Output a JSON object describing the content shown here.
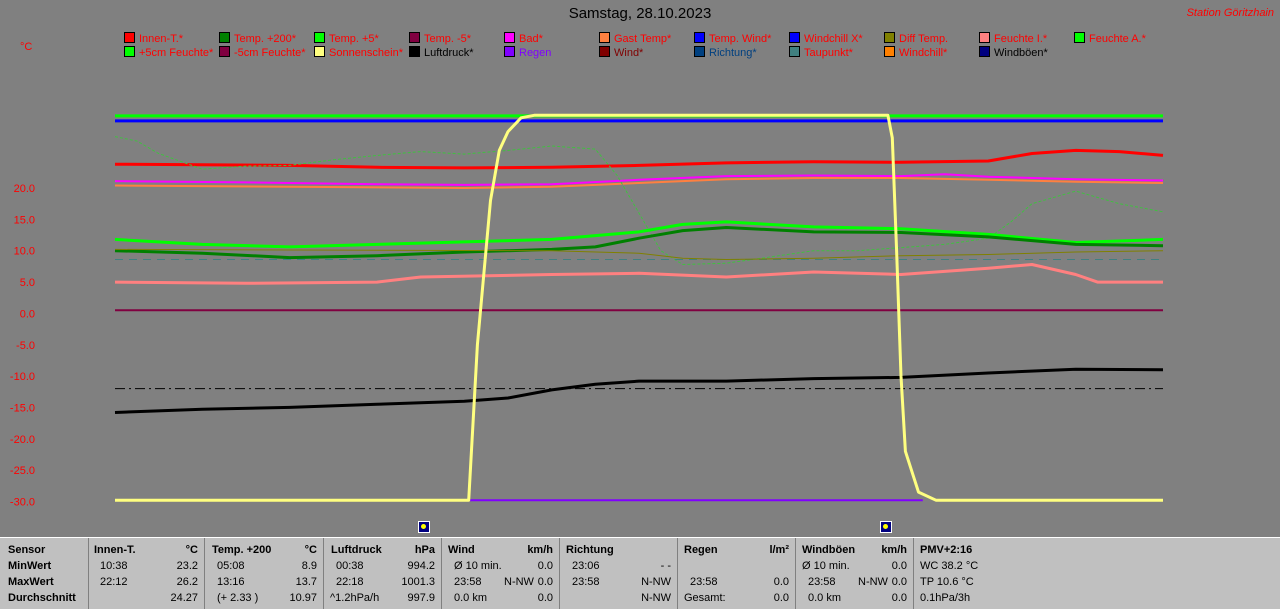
{
  "title": "Samstag, 28.10.2023",
  "station": "Station Göritzhain",
  "unit": "°C",
  "legend": [
    {
      "label": "Innen-T.*",
      "color": "#ff0000"
    },
    {
      "label": "Temp. +200*",
      "color": "#008000"
    },
    {
      "label": "Temp. +5*",
      "color": "#00ff00"
    },
    {
      "label": "Temp. -5*",
      "color": "#800040"
    },
    {
      "label": "Bad*",
      "color": "#ff00ff"
    },
    {
      "label": "Gast Temp*",
      "color": "#ff8040"
    },
    {
      "label": "Temp. Wind*",
      "color": "#0000ff"
    },
    {
      "label": "Windchill X*",
      "color": "#0000ff"
    },
    {
      "label": "Diff Temp.",
      "color": "#808000"
    },
    {
      "label": "Feuchte I.*",
      "color": "#ff8080"
    },
    {
      "label": "Feuchte A.*",
      "color": "#00ff00"
    },
    {
      "label": "+5cm Feuchte*",
      "color": "#00ff00"
    },
    {
      "label": "-5cm Feuchte*",
      "color": "#800040"
    },
    {
      "label": "Sonnenschein*",
      "color": "#ffff80"
    },
    {
      "label": "Luftdruck*",
      "color": "#000000"
    },
    {
      "label": "Regen",
      "color": "#8000ff"
    },
    {
      "label": "Wind*",
      "color": "#800000"
    },
    {
      "label": "Richtung*",
      "color": "#004080"
    },
    {
      "label": "Taupunkt*",
      "color": "#408080"
    },
    {
      "label": "Windchill*",
      "color": "#ff8000"
    },
    {
      "label": "Windböen*",
      "color": "#000080"
    }
  ],
  "legend_text_colors": [
    "#ff0000",
    "#ff0000",
    "#ff0000",
    "#ff0000",
    "#ff0000",
    "#ff0000",
    "#ff0000",
    "#ff0000",
    "#ff0000",
    "#ff0000",
    "#ff0000",
    "#ff0000",
    "#ff0000",
    "#ff0000",
    "#000000",
    "#8000ff",
    "#800000",
    "#004080",
    "#ff0000",
    "#ff0000",
    "#000000"
  ],
  "chart_data": {
    "type": "line",
    "ylim": [
      -30,
      32
    ],
    "yticks": [
      "20.0",
      "15.0",
      "10.0",
      "5.0",
      "0.0",
      "-5.0",
      "-10.0",
      "-15.0",
      "-20.0",
      "-25.0",
      "-30.0"
    ],
    "ytick_values": [
      20,
      15,
      10,
      5,
      0,
      -5,
      -10,
      -15,
      -20,
      -25,
      -30
    ],
    "x_range_hours": [
      0,
      24
    ],
    "series": [
      {
        "key": "innen",
        "color": "#ff0000",
        "width": 3,
        "points": [
          [
            0,
            23.8
          ],
          [
            2,
            23.7
          ],
          [
            4,
            23.6
          ],
          [
            6,
            23.3
          ],
          [
            8,
            23.2
          ],
          [
            10,
            23.3
          ],
          [
            12,
            23.6
          ],
          [
            14,
            24.0
          ],
          [
            16,
            24.2
          ],
          [
            18,
            24.1
          ],
          [
            20,
            24.3
          ],
          [
            21,
            25.5
          ],
          [
            22,
            26.0
          ],
          [
            23,
            25.8
          ],
          [
            24,
            25.2
          ]
        ]
      },
      {
        "key": "bad",
        "color": "#ff00ff",
        "width": 2,
        "points": [
          [
            0,
            21.1
          ],
          [
            3,
            20.9
          ],
          [
            6,
            20.6
          ],
          [
            8,
            20.5
          ],
          [
            10,
            20.6
          ],
          [
            12,
            21.3
          ],
          [
            14,
            21.9
          ],
          [
            16,
            22.0
          ],
          [
            18,
            21.9
          ],
          [
            19,
            22.2
          ],
          [
            20,
            21.8
          ],
          [
            22,
            21.4
          ],
          [
            24,
            21.2
          ]
        ]
      },
      {
        "key": "gast",
        "color": "#ff8040",
        "width": 2,
        "points": [
          [
            0,
            20.4
          ],
          [
            4,
            20.2
          ],
          [
            8,
            20.0
          ],
          [
            10,
            20.2
          ],
          [
            12,
            20.8
          ],
          [
            14,
            21.4
          ],
          [
            16,
            21.6
          ],
          [
            18,
            21.6
          ],
          [
            20,
            21.3
          ],
          [
            22,
            21.0
          ],
          [
            24,
            20.8
          ]
        ]
      },
      {
        "key": "feuchte_a",
        "color": "#40c040",
        "width": 1,
        "dash": "3,2",
        "points": [
          [
            0,
            28.2
          ],
          [
            0.5,
            27.5
          ],
          [
            1,
            25.5
          ],
          [
            2,
            23.0
          ],
          [
            3,
            23.5
          ],
          [
            4,
            23.6
          ],
          [
            5,
            24.5
          ],
          [
            6,
            25.2
          ],
          [
            7,
            25.8
          ],
          [
            8,
            25.4
          ],
          [
            9,
            26.0
          ],
          [
            10,
            26.7
          ],
          [
            11,
            26.2
          ],
          [
            11.5,
            22.0
          ],
          [
            12,
            16.0
          ],
          [
            12.5,
            10.0
          ],
          [
            13,
            7.8
          ],
          [
            14,
            8.0
          ],
          [
            15,
            9.0
          ],
          [
            16,
            10.0
          ],
          [
            17,
            10.0
          ],
          [
            18,
            10.5
          ],
          [
            19,
            11.0
          ],
          [
            20,
            12.0
          ],
          [
            20.5,
            14.5
          ],
          [
            21,
            17.5
          ],
          [
            22,
            19.5
          ],
          [
            23,
            17.5
          ],
          [
            24,
            16.2
          ]
        ]
      },
      {
        "key": "temp5",
        "color": "#00ff00",
        "width": 3,
        "points": [
          [
            0,
            11.8
          ],
          [
            2,
            11.0
          ],
          [
            4,
            10.6
          ],
          [
            6,
            11.0
          ],
          [
            8,
            11.4
          ],
          [
            10,
            11.8
          ],
          [
            12,
            13.0
          ],
          [
            13,
            14.2
          ],
          [
            14,
            14.6
          ],
          [
            16,
            13.8
          ],
          [
            18,
            13.5
          ],
          [
            20,
            12.6
          ],
          [
            22,
            11.3
          ],
          [
            24,
            11.8
          ]
        ]
      },
      {
        "key": "temp200",
        "color": "#008000",
        "width": 3,
        "points": [
          [
            0,
            10.0
          ],
          [
            2,
            9.6
          ],
          [
            4,
            8.9
          ],
          [
            6,
            9.2
          ],
          [
            8,
            9.8
          ],
          [
            10,
            10.2
          ],
          [
            11,
            10.6
          ],
          [
            12,
            12.0
          ],
          [
            13,
            13.2
          ],
          [
            14,
            13.7
          ],
          [
            16,
            13.0
          ],
          [
            18,
            12.9
          ],
          [
            20,
            12.2
          ],
          [
            22,
            11.0
          ],
          [
            24,
            10.8
          ]
        ]
      },
      {
        "key": "taupunkt",
        "color": "#408080",
        "width": 1,
        "dash": "8,6",
        "points": [
          [
            0,
            8.6
          ],
          [
            24,
            8.6
          ]
        ]
      },
      {
        "key": "diff",
        "color": "#808000",
        "width": 1,
        "points": [
          [
            0,
            10.2
          ],
          [
            10,
            10.0
          ],
          [
            12,
            9.6
          ],
          [
            13,
            8.8
          ],
          [
            14,
            8.6
          ],
          [
            16,
            8.8
          ],
          [
            18,
            9.2
          ],
          [
            20,
            9.4
          ],
          [
            22,
            9.8
          ],
          [
            24,
            10.0
          ]
        ]
      },
      {
        "key": "feuchte_i",
        "color": "#ff8080",
        "width": 3,
        "points": [
          [
            0,
            5.0
          ],
          [
            3,
            4.8
          ],
          [
            6,
            5.0
          ],
          [
            7,
            5.8
          ],
          [
            10,
            6.2
          ],
          [
            12,
            6.4
          ],
          [
            14,
            5.8
          ],
          [
            16,
            6.6
          ],
          [
            18,
            6.2
          ],
          [
            20,
            7.2
          ],
          [
            21,
            7.8
          ],
          [
            22,
            6.2
          ],
          [
            22.5,
            5.0
          ],
          [
            24,
            5.0
          ]
        ]
      },
      {
        "key": "temp_minus5",
        "color": "#800040",
        "width": 2,
        "points": [
          [
            0,
            0.5
          ],
          [
            24,
            0.5
          ]
        ]
      },
      {
        "key": "windboen_dash",
        "color": "#000000",
        "width": 1,
        "dash": "10,4,2,4",
        "points": [
          [
            0,
            -12.0
          ],
          [
            24,
            -12.0
          ]
        ]
      },
      {
        "key": "luftdruck",
        "color": "#000000",
        "width": 3,
        "points": [
          [
            0,
            -15.8
          ],
          [
            2,
            -15.3
          ],
          [
            4,
            -15.0
          ],
          [
            6,
            -14.5
          ],
          [
            8,
            -14.0
          ],
          [
            9,
            -13.5
          ],
          [
            10,
            -12.2
          ],
          [
            11,
            -11.3
          ],
          [
            12,
            -10.8
          ],
          [
            14,
            -10.8
          ],
          [
            16,
            -10.4
          ],
          [
            18,
            -10.2
          ],
          [
            20,
            -9.5
          ],
          [
            22,
            -8.9
          ],
          [
            24,
            -9.0
          ]
        ]
      },
      {
        "key": "regen",
        "color": "#8000ff",
        "width": 2,
        "points": [
          [
            8,
            -29.8
          ],
          [
            18.5,
            -29.8
          ]
        ]
      },
      {
        "key": "temp_wind",
        "color": "#00ff00",
        "width": 3,
        "points": [
          [
            0,
            31.5
          ],
          [
            24,
            31.5
          ]
        ]
      },
      {
        "key": "windchill_x",
        "color": "#0000ff",
        "width": 3,
        "points": [
          [
            0,
            30.7
          ],
          [
            24,
            30.7
          ]
        ]
      },
      {
        "key": "sonnenschein",
        "color": "#ffff80",
        "width": 3,
        "points": [
          [
            0,
            -29.8
          ],
          [
            8.1,
            -29.8
          ],
          [
            8.3,
            -5
          ],
          [
            8.6,
            18
          ],
          [
            8.8,
            26
          ],
          [
            9.0,
            29
          ],
          [
            9.3,
            31.2
          ],
          [
            9.6,
            31.6
          ],
          [
            17.7,
            31.6
          ],
          [
            17.8,
            28
          ],
          [
            17.9,
            10
          ],
          [
            18.0,
            -10
          ],
          [
            18.1,
            -22
          ],
          [
            18.4,
            -28.5
          ],
          [
            18.8,
            -29.8
          ],
          [
            24,
            -29.8
          ]
        ]
      }
    ]
  },
  "panel": {
    "sensor": {
      "h": "Sensor",
      "r1": "MinWert",
      "r2": "MaxWert",
      "r3": "Durchschnitt"
    },
    "innen": {
      "h": "Innen-T.",
      "u": "°C",
      "r1a": "10:38",
      "r1b": "23.2",
      "r2a": "22:12",
      "r2b": "26.2",
      "r3b": "24.27"
    },
    "temp200": {
      "h": "Temp. +200",
      "u": "°C",
      "r1a": "05:08",
      "r1b": "8.9",
      "r2a": "13:16",
      "r2b": "13.7",
      "r3a": "(+ 2.33 )",
      "r3b": "10.97"
    },
    "luft": {
      "h": "Luftdruck",
      "u": "hPa",
      "r1a": "00:38",
      "r1b": "994.2",
      "r2a": "22:18",
      "r2b": "1001.3",
      "r3a": "^1.2hPa/h",
      "r3b": "997.9"
    },
    "wind": {
      "h": "Wind",
      "u": "km/h",
      "r1a": "Ø 10 min.",
      "r1b": "0.0",
      "r2a": "23:58",
      "r2m": "N-NW",
      "r2b": "0.0",
      "r3a": "0.0 km",
      "r3b": "0.0"
    },
    "richtung": {
      "h": "Richtung",
      "r1a": "23:06",
      "r1b": "- -",
      "r2a": "23:58",
      "r2b": "N-NW",
      "r3b": "N-NW"
    },
    "regen": {
      "h": "Regen",
      "u": "l/m²",
      "r2a": "23:58",
      "r2b": "0.0",
      "r3a": "Gesamt:",
      "r3b": "0.0"
    },
    "boen": {
      "h": "Windböen",
      "u": "km/h",
      "r1a": "Ø 10 min.",
      "r1b": "0.0",
      "r2a": "23:58",
      "r2m": "N-NW",
      "r2b": "0.0",
      "r3a": "0.0 km",
      "r3b": "0.0"
    },
    "pmv": {
      "h": "PMV+2:16",
      "r1": "WC 38.2 °C",
      "r2": "TP 10.6 °C",
      "r3": "0.1hPa/3h"
    }
  }
}
